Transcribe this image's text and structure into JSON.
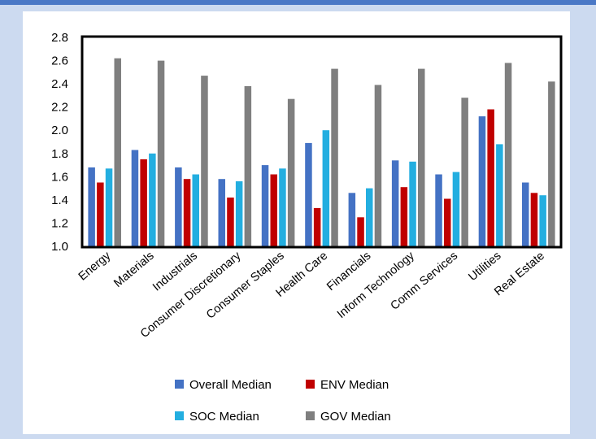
{
  "chart_data": {
    "type": "bar",
    "categories": [
      "Energy",
      "Materials",
      "Industrials",
      "Consumer Discretionary",
      "Consumer Staples",
      "Health Care",
      "Financials",
      "Inform Technology",
      "Comm Services",
      "Utilities",
      "Real Estate"
    ],
    "series": [
      {
        "name": "Overall Median",
        "color": "#4472c4",
        "values": [
          1.68,
          1.83,
          1.68,
          1.58,
          1.7,
          1.89,
          1.46,
          1.74,
          1.62,
          2.12,
          1.55
        ]
      },
      {
        "name": "ENV Median",
        "color": "#c00000",
        "values": [
          1.55,
          1.75,
          1.58,
          1.42,
          1.62,
          1.33,
          1.25,
          1.51,
          1.41,
          2.18,
          1.46
        ]
      },
      {
        "name": "SOC Median",
        "color": "#23aee0",
        "values": [
          1.67,
          1.8,
          1.62,
          1.56,
          1.67,
          2.0,
          1.5,
          1.73,
          1.64,
          1.88,
          1.44
        ]
      },
      {
        "name": "GOV Median",
        "color": "#7f7f7f",
        "values": [
          2.62,
          2.6,
          2.47,
          2.38,
          2.27,
          2.53,
          2.39,
          2.53,
          2.28,
          2.58,
          2.42
        ]
      }
    ],
    "ylim": [
      1.0,
      2.8
    ],
    "yticks": [
      "2.8",
      "2.6",
      "2.4",
      "2.2",
      "2.0",
      "1.8",
      "1.6",
      "1.4",
      "1.2",
      "1.0"
    ],
    "grid": false,
    "legend_position": "bottom"
  }
}
